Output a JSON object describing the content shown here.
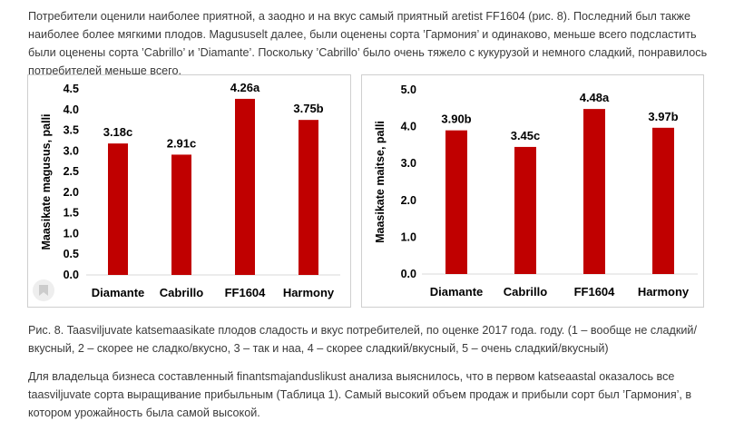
{
  "text": {
    "paragraph1": "Потребители оценили наиболее приятной, а заодно и на вкус самый приятный aretist FF1604 (рис. 8). Последний был также наиболее более мягкими плодов. Magususelt далее, были оценены сорта ’Гармония’ и одинаково, меньше всего подсластить были оценены сорта ’Cabrillo’ и ’Diamante’. Поскольку ’Cabrillo’ было очень тяжело с кукурузой и немного сладкий, понравилось потребителей меньше всего.",
    "caption": "Рис. 8. Taasviljuvate katsemaasikate плодов сладость и вкус потребителей, по оценке 2017 года. году. (1 – вообще не сладкий/вкусный, 2 – скорее не сладко/вкусно, 3 – так и наа, 4 – скорее сладкий/вкусный, 5 – очень сладкий/вкусный)",
    "paragraph2": "Для владельца бизнеса составленный finantsmajanduslikust анализа выяснилось, что в первом katseaastal оказалось все taasviljuvate сорта выращивание прибыльным (Таблица 1). Самый высокий объем продаж и прибыли сорт был ’Гармония’, в котором урожайность была самой высокой."
  },
  "icons": {
    "bookmark": "bookmark-icon"
  },
  "colors": {
    "bar": "#c00000",
    "axis": "#d9d9d9"
  },
  "chart_data": [
    {
      "type": "bar",
      "title": "",
      "xlabel": "",
      "ylabel": "Maasikate magusus, palli",
      "categories": [
        "Diamante",
        "Cabrillo",
        "FF1604",
        "Harmony"
      ],
      "values": [
        3.18,
        2.91,
        4.26,
        3.75
      ],
      "labels": [
        "3.18c",
        "2.91c",
        "4.26a",
        "3.75b"
      ],
      "ylim": [
        0,
        4.5
      ],
      "yticks": [
        "0.0",
        "0.5",
        "1.0",
        "1.5",
        "2.0",
        "2.5",
        "3.0",
        "3.5",
        "4.0",
        "4.5"
      ],
      "grid": false
    },
    {
      "type": "bar",
      "title": "",
      "xlabel": "",
      "ylabel": "Maasikate maitse, palli",
      "categories": [
        "Diamante",
        "Cabrillo",
        "FF1604",
        "Harmony"
      ],
      "values": [
        3.9,
        3.45,
        4.48,
        3.97
      ],
      "labels": [
        "3.90b",
        "3.45c",
        "4.48a",
        "3.97b"
      ],
      "ylim": [
        0,
        5.0
      ],
      "yticks": [
        "0.0",
        "1.0",
        "2.0",
        "3.0",
        "4.0",
        "5.0"
      ],
      "grid": false
    }
  ]
}
